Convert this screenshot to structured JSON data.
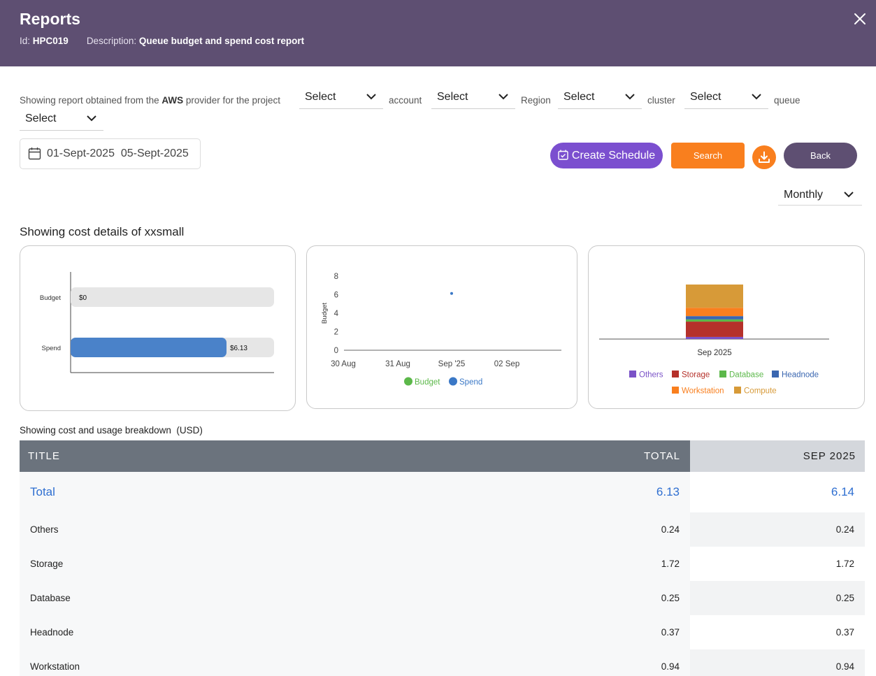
{
  "header": {
    "title": "Reports",
    "id_label": "Id:",
    "id_value": "HPC019",
    "desc_label": "Description:",
    "desc_value": "Queue budget and spend cost report"
  },
  "filters": {
    "intro_pre": "Showing report obtained from the",
    "provider": "AWS",
    "intro_post": "provider for the project",
    "project_value": "Select",
    "account_label": "account",
    "account_value": "Select",
    "region_label": "Region",
    "region_value": "Select",
    "cluster_label": "cluster",
    "cluster_value": "Select",
    "queue_label": "queue",
    "queue_value": "Select"
  },
  "date_range": {
    "start": "01-Sept-2025",
    "end": "05-Sept-2025"
  },
  "actions": {
    "create_schedule": "Create Schedule",
    "search": "Search",
    "back": "Back"
  },
  "period_select": "Monthly",
  "section_title": "Showing cost details of xxsmall",
  "colors": {
    "header_bg": "#5e4f72",
    "accent_purple": "#7b4fcf",
    "accent_orange": "#f97f1e",
    "budget_green": "#5cb84a",
    "spend_blue": "#3a78c6"
  },
  "chart_data": [
    {
      "type": "bar",
      "orientation": "horizontal",
      "categories": [
        "Budget",
        "Spend"
      ],
      "values": [
        0,
        6.13
      ],
      "data_labels": [
        "$0",
        "$6.13"
      ],
      "track_max": 8
    },
    {
      "type": "scatter",
      "ylabel": "Budget",
      "xticks": [
        "30 Aug",
        "31 Aug",
        "Sep '25",
        "02 Sep"
      ],
      "yticks": [
        0,
        2,
        4,
        6,
        8
      ],
      "ylim": [
        0,
        8
      ],
      "series": [
        {
          "name": "Budget",
          "color": "#5cb84a",
          "points": []
        },
        {
          "name": "Spend",
          "color": "#3a78c6",
          "points": [
            {
              "x": "Sep '25",
              "y": 6.13
            }
          ]
        }
      ],
      "legend": "bottom"
    },
    {
      "type": "bar",
      "stacked": true,
      "categories": [
        "Sep 2025"
      ],
      "series": [
        {
          "name": "Others",
          "color": "#7a52c7",
          "values": [
            0.24
          ]
        },
        {
          "name": "Storage",
          "color": "#b5312a",
          "values": [
            1.72
          ]
        },
        {
          "name": "Database",
          "color": "#5cb84a",
          "values": [
            0.25
          ]
        },
        {
          "name": "Headnode",
          "color": "#3a66b0",
          "values": [
            0.37
          ]
        },
        {
          "name": "Workstation",
          "color": "#f97f1e",
          "values": [
            0.94
          ]
        },
        {
          "name": "Compute",
          "color": "#d79a38",
          "values": [
            2.61
          ]
        }
      ],
      "legend": "bottom"
    }
  ],
  "table": {
    "caption": "Showing cost and usage breakdown  (USD)",
    "headers": [
      "TITLE",
      "TOTAL",
      "SEP 2025"
    ],
    "rows": [
      [
        "Total",
        "6.13",
        "6.14"
      ],
      [
        "Others",
        "0.24",
        "0.24"
      ],
      [
        "Storage",
        "1.72",
        "1.72"
      ],
      [
        "Database",
        "0.25",
        "0.25"
      ],
      [
        "Headnode",
        "0.37",
        "0.37"
      ],
      [
        "Workstation",
        "0.94",
        "0.94"
      ]
    ]
  }
}
